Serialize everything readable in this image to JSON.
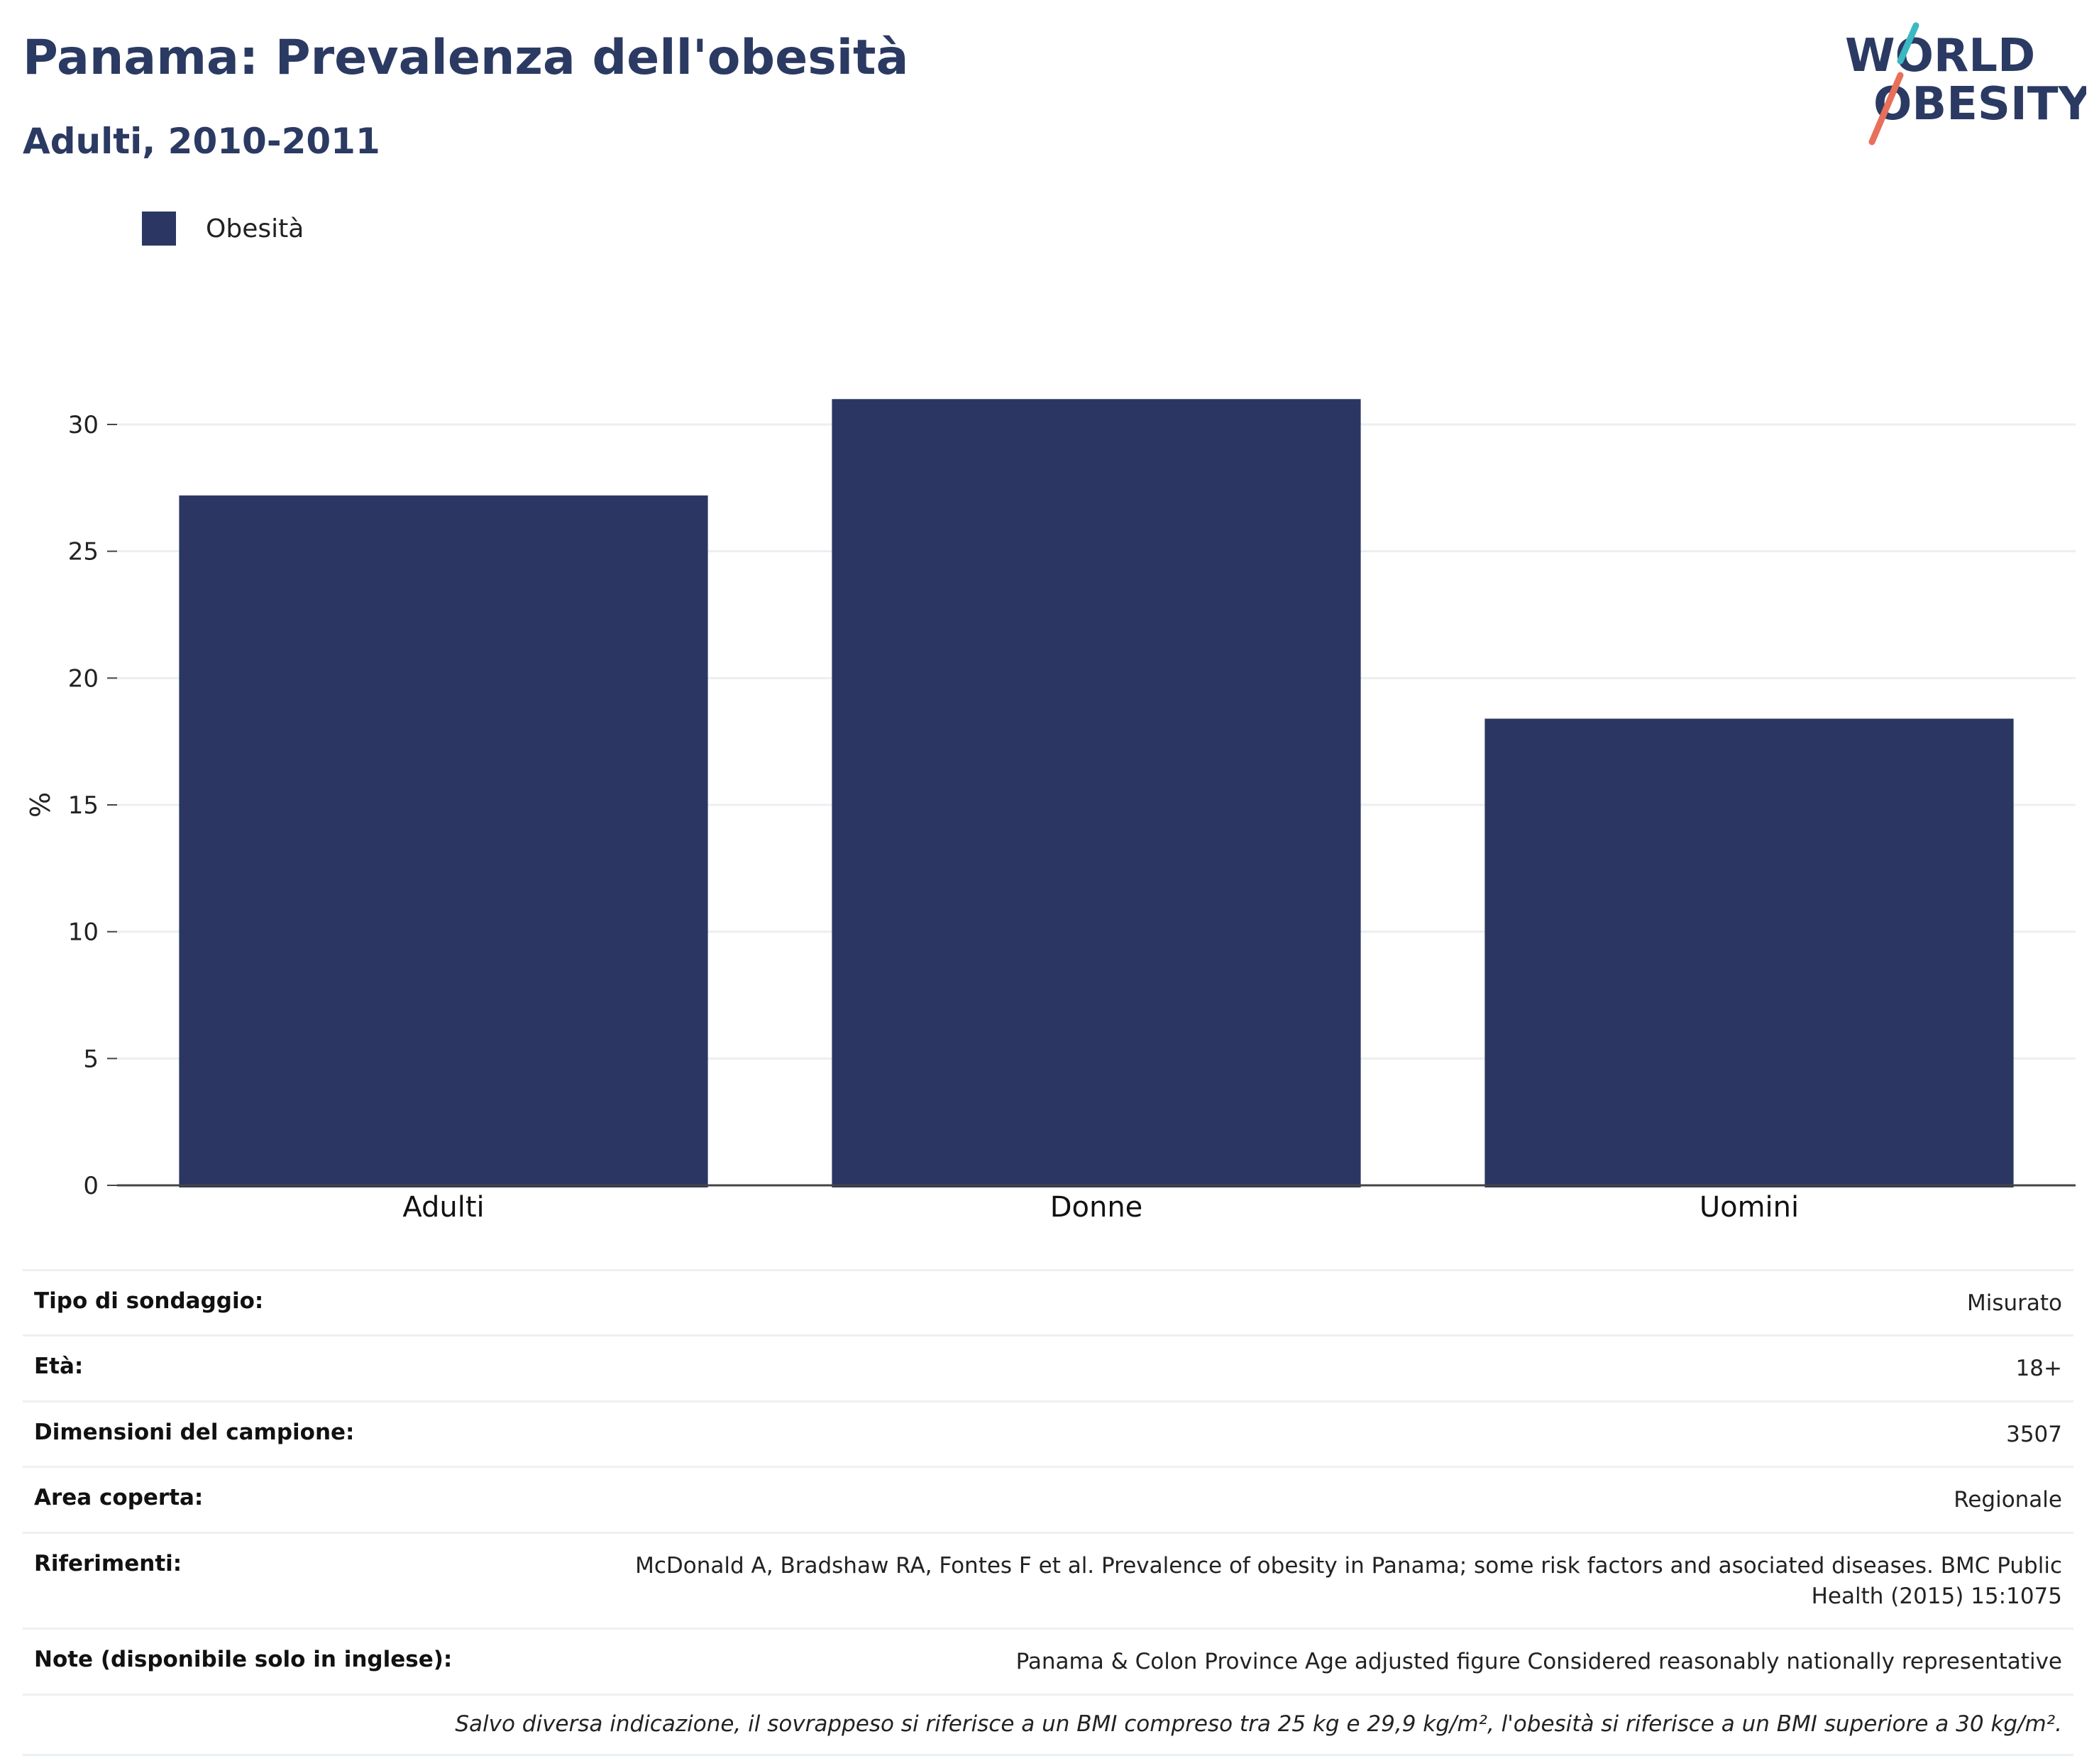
{
  "header": {
    "title": "Panama: Prevalenza dell'obesità",
    "subtitle": "Adulti, 2010-2011"
  },
  "logo": {
    "line1": "WORLD",
    "line2": "OBESITY",
    "colors": {
      "text": "#2b3a62",
      "stroke_top": "#3bb8c2",
      "stroke_bottom": "#e8705a"
    }
  },
  "legend": {
    "label": "Obesità",
    "color": "#2b3762"
  },
  "chart_data": {
    "type": "bar",
    "categories": [
      "Adulti",
      "Donne",
      "Uomini"
    ],
    "series": [
      {
        "name": "Obesità",
        "values": [
          27.2,
          31.0,
          18.4
        ],
        "color": "#2b3762"
      }
    ],
    "ylabel": "%",
    "ylim": [
      0,
      32
    ],
    "yticks": [
      0,
      5,
      10,
      15,
      20,
      25,
      30
    ],
    "grid": true,
    "legend_position": "top-left"
  },
  "info": {
    "rows": [
      {
        "key": "Tipo di sondaggio:",
        "value": "Misurato"
      },
      {
        "key": "Età:",
        "value": "18+"
      },
      {
        "key": "Dimensioni del campione:",
        "value": "3507"
      },
      {
        "key": "Area coperta:",
        "value": "Regionale"
      },
      {
        "key": "Riferimenti:",
        "value": "McDonald A, Bradshaw RA, Fontes F et al. Prevalence of obesity in Panama; some risk factors and asociated diseases. BMC Public Health (2015) 15:1075"
      },
      {
        "key": "Note (disponibile solo in inglese):",
        "value": "Panama & Colon Province Age adjusted figure Considered reasonably nationally representative"
      }
    ],
    "footnote": "Salvo diversa indicazione, il sovrappeso si riferisce a un BMI compreso tra 25 kg e 29,9 kg/m², l'obesità si riferisce a un BMI superiore a 30 kg/m²."
  }
}
